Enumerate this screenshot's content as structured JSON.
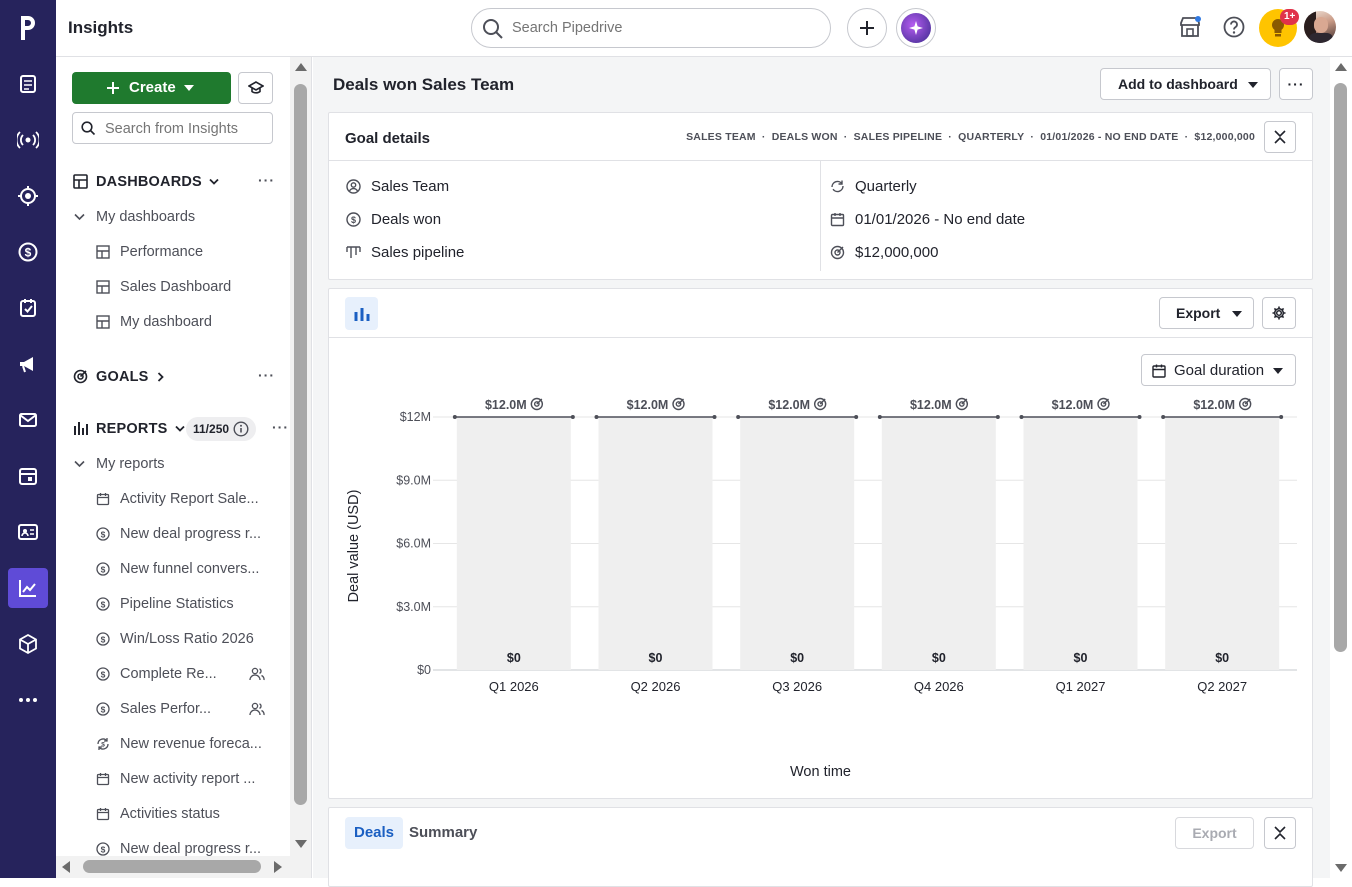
{
  "topbar": {
    "title": "Insights",
    "search_placeholder": "Search Pipedrive",
    "notification_badge": "1+"
  },
  "sidebar": {
    "create_label": "Create",
    "search_placeholder": "Search from Insights",
    "dashboards_header": "DASHBOARDS",
    "my_dashboards": "My dashboards",
    "dashboards": [
      "Performance",
      "Sales Dashboard",
      "My dashboard"
    ],
    "goals_header": "GOALS",
    "reports_header": "REPORTS",
    "reports_count": "11/250",
    "my_reports": "My reports",
    "reports": [
      {
        "label": "Activity Report Sale...",
        "icon": "calendar-icon"
      },
      {
        "label": "New deal progress r...",
        "icon": "dollar-icon"
      },
      {
        "label": "New funnel convers...",
        "icon": "dollar-icon"
      },
      {
        "label": "Pipeline Statistics",
        "icon": "dollar-icon"
      },
      {
        "label": "Win/Loss Ratio 2026",
        "icon": "dollar-icon"
      },
      {
        "label": "Complete Re...",
        "icon": "dollar-icon",
        "shared": true
      },
      {
        "label": "Sales Perfor...",
        "icon": "dollar-icon",
        "shared": true
      },
      {
        "label": "New revenue foreca...",
        "icon": "revenue-icon"
      },
      {
        "label": "New activity report ...",
        "icon": "calendar-icon"
      },
      {
        "label": "Activities status",
        "icon": "calendar-icon"
      },
      {
        "label": "New deal progress r...",
        "icon": "dollar-icon"
      }
    ]
  },
  "main": {
    "title": "Deals won Sales Team",
    "add_to_dashboard": "Add to dashboard",
    "goal_details": {
      "heading": "Goal details",
      "meta": [
        "SALES TEAM",
        "DEALS WON",
        "SALES PIPELINE",
        "QUARTERLY",
        "01/01/2026 - NO END DATE",
        "$12,000,000"
      ],
      "assignee": "Sales Team",
      "type": "Deals won",
      "pipeline": "Sales pipeline",
      "interval": "Quarterly",
      "duration": "01/01/2026 - No end date",
      "target": "$12,000,000"
    },
    "export_label": "Export",
    "goal_duration_label": "Goal duration",
    "tabs": [
      "Deals",
      "Summary"
    ],
    "bottom_export": "Export"
  },
  "chart_data": {
    "type": "bar",
    "categories": [
      "Q1 2026",
      "Q2 2026",
      "Q3 2026",
      "Q4 2026",
      "Q1 2027",
      "Q2 2027"
    ],
    "values": [
      0,
      0,
      0,
      0,
      0,
      0
    ],
    "value_labels": [
      "$0",
      "$0",
      "$0",
      "$0",
      "$0",
      "$0"
    ],
    "goal_values": [
      12000000,
      12000000,
      12000000,
      12000000,
      12000000,
      12000000
    ],
    "goal_labels": [
      "$12.0M",
      "$12.0M",
      "$12.0M",
      "$12.0M",
      "$12.0M",
      "$12.0M"
    ],
    "yticks": [
      "$0",
      "$3.0M",
      "$6.0M",
      "$9.0M",
      "$12M"
    ],
    "ytick_values": [
      0,
      3000000,
      6000000,
      9000000,
      12000000
    ],
    "ylim": [
      0,
      12000000
    ],
    "xlabel": "Won time",
    "ylabel": "Deal value (USD)",
    "colors": {
      "goal_bar": "#efefef",
      "goal_line": "#4d4f58",
      "grid": "#e6e6e6"
    }
  }
}
